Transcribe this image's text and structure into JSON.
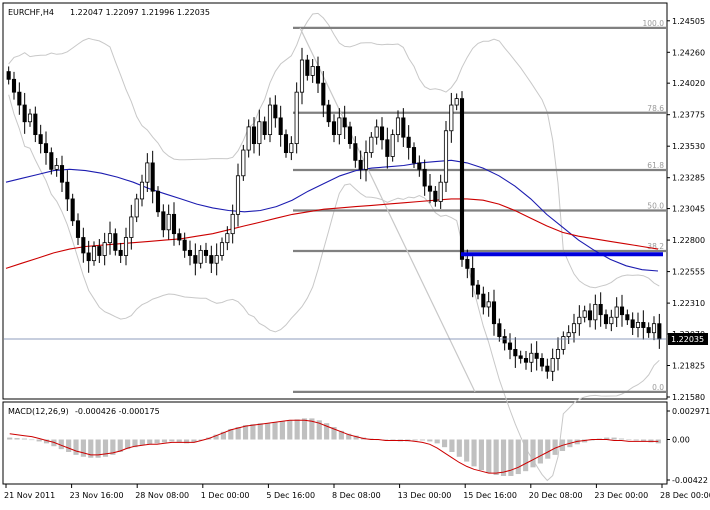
{
  "header": {
    "symbol": "EURCHF,H4",
    "ohlc": "1.22047 1.22097 1.21996 1.22035"
  },
  "macd_header": {
    "label": "MACD(12,26,9)",
    "values": "-0.000426 -0.000175"
  },
  "current_price_label": "1.22035",
  "colors": {
    "candle": "#000000",
    "ma_slow": "#cc0000",
    "ma_fast": "#1c1cb0",
    "bands": "#c8c8c8",
    "fib": "#808080",
    "support_line": "#0000dd",
    "macd_hist": "#c0c0c0",
    "macd_signal": "#cc0000"
  },
  "chart_data": [
    {
      "type": "candlestick",
      "title": "EURCHF,H4 1.22047 1.22097 1.21996 1.22035",
      "ylim": [
        1.2158,
        1.2455
      ],
      "y_ticks": [
        "1.24505",
        "1.24260",
        "1.24020",
        "1.23775",
        "1.23530",
        "1.23285",
        "1.23045",
        "1.22800",
        "1.22555",
        "1.22310",
        "1.22070",
        "1.21825",
        "1.21580"
      ],
      "x_ticks": [
        "21 Nov 2011",
        "23 Nov 16:00",
        "28 Nov 08:00",
        "1 Dec 00:00",
        "5 Dec 16:00",
        "8 Dec 08:00",
        "13 Dec 00:00",
        "15 Dec 16:00",
        "20 Dec 08:00",
        "23 Dec 00:00",
        "28 Dec 00:00"
      ],
      "close": [
        1.2405,
        1.2395,
        1.2385,
        1.2372,
        1.2378,
        1.2362,
        1.2355,
        1.2348,
        1.2335,
        1.2338,
        1.2325,
        1.2312,
        1.2295,
        1.2282,
        1.227,
        1.2264,
        1.2275,
        1.2268,
        1.2278,
        1.2285,
        1.2272,
        1.2268,
        1.2282,
        1.2298,
        1.2312,
        1.2325,
        1.234,
        1.2318,
        1.2302,
        1.2288,
        1.23,
        1.2285,
        1.228,
        1.2272,
        1.2268,
        1.2262,
        1.2272,
        1.2268,
        1.2262,
        1.2268,
        1.2278,
        1.2285,
        1.23,
        1.233,
        1.235,
        1.2368,
        1.2355,
        1.2372,
        1.2362,
        1.2385,
        1.2375,
        1.2362,
        1.2348,
        1.2355,
        1.2395,
        1.242,
        1.2408,
        1.2415,
        1.2402,
        1.2385,
        1.2372,
        1.2362,
        1.2375,
        1.2368,
        1.2355,
        1.2342,
        1.2335,
        1.2348,
        1.236,
        1.2368,
        1.2358,
        1.2345,
        1.2362,
        1.2375,
        1.236,
        1.2352,
        1.234,
        1.2335,
        1.2322,
        1.2318,
        1.231,
        1.2325,
        1.2365,
        1.2385,
        1.239,
        1.2265,
        1.2258,
        1.2245,
        1.2238,
        1.2228,
        1.2232,
        1.2215,
        1.2205,
        1.22,
        1.2195,
        1.219,
        1.2188,
        1.2185,
        1.2192,
        1.2188,
        1.2182,
        1.2178,
        1.2188,
        1.2195,
        1.2205,
        1.2208,
        1.2215,
        1.222,
        1.2225,
        1.2218,
        1.223,
        1.2222,
        1.2215,
        1.222,
        1.2228,
        1.2222,
        1.2218,
        1.2212,
        1.2216,
        1.2212,
        1.2208,
        1.2215,
        1.2203
      ],
      "series": [
        {
          "name": "MA (fast)",
          "color": "#1c1cb0",
          "values": [
            1.2325,
            1.2328,
            1.2331,
            1.2334,
            1.2335,
            1.2334,
            1.2332,
            1.2329,
            1.2325,
            1.232,
            1.2316,
            1.2312,
            1.2308,
            1.2305,
            1.2303,
            1.2302,
            1.2303,
            1.2306,
            1.2311,
            1.2318,
            1.2324,
            1.233,
            1.2334,
            1.2336,
            1.2337,
            1.2338,
            1.234,
            1.2341,
            1.2342,
            1.234,
            1.2336,
            1.233,
            1.2322,
            1.2312,
            1.23,
            1.229,
            1.228,
            1.2272,
            1.2265,
            1.226,
            1.2257,
            1.2256
          ]
        },
        {
          "name": "MA (slow)",
          "color": "#cc0000",
          "values": [
            1.2258,
            1.2262,
            1.2266,
            1.227,
            1.2273,
            1.2275,
            1.2276,
            1.2277,
            1.2278,
            1.2279,
            1.228,
            1.2281,
            1.2283,
            1.2285,
            1.2288,
            1.2291,
            1.2294,
            1.2297,
            1.23,
            1.2302,
            1.2304,
            1.2305,
            1.2306,
            1.2307,
            1.2308,
            1.2309,
            1.231,
            1.2311,
            1.2312,
            1.2312,
            1.2311,
            1.2308,
            1.2303,
            1.2297,
            1.2291,
            1.2286,
            1.2283,
            1.2281,
            1.2279,
            1.2277,
            1.2275,
            1.2273
          ]
        }
      ],
      "fibonacci": [
        {
          "label": "100.0",
          "value": 1.2445
        },
        {
          "label": "78.6",
          "value": 1.2379
        },
        {
          "label": "61.8",
          "value": 1.23345
        },
        {
          "label": "50.0",
          "value": 1.2303
        },
        {
          "label": "38.2",
          "value": 1.22715
        },
        {
          "label": "0.0",
          "value": 1.2162
        }
      ],
      "support_line": {
        "value": 1.2269
      }
    },
    {
      "type": "bar",
      "title": "MACD(12,26,9) -0.000426 -0.000175",
      "ylim": [
        -0.00422,
        0.002971
      ],
      "y_ticks": [
        "0.002971",
        "0.00",
        "-0.00422"
      ],
      "histogram": [
        0.0002,
        0.00015,
        0.0001,
        0.0,
        -0.0002,
        -0.0004,
        -0.0007,
        -0.001,
        -0.0013,
        -0.0016,
        -0.0018,
        -0.0019,
        -0.0019,
        -0.0018,
        -0.0016,
        -0.0013,
        -0.001,
        -0.0008,
        -0.0006,
        -0.0005,
        -0.0004,
        -0.0003,
        -0.0002,
        -0.0003,
        -0.0004,
        -0.0003,
        -0.0001,
        0.0002,
        0.0005,
        0.0008,
        0.0011,
        0.0013,
        0.0015,
        0.0016,
        0.0017,
        0.0017,
        0.0018,
        0.0019,
        0.002,
        0.0021,
        0.0022,
        0.0022,
        0.002,
        0.0017,
        0.0013,
        0.0009,
        0.0006,
        0.0004,
        0.0002,
        0.0001,
        0.0,
        -0.0001,
        -0.0001,
        -0.0002,
        -0.0002,
        -0.0001,
        -0.0001,
        -0.0002,
        -0.0004,
        -0.0008,
        -0.0013,
        -0.0018,
        -0.0023,
        -0.0028,
        -0.0032,
        -0.0035,
        -0.0037,
        -0.0038,
        -0.0038,
        -0.0036,
        -0.0033,
        -0.0029,
        -0.0025,
        -0.002,
        -0.0016,
        -0.0012,
        -0.0008,
        -0.0005,
        -0.0003,
        -0.0001,
        0.0001,
        0.0002,
        0.0002,
        0.0001,
        0.0,
        -0.0001,
        -0.0002,
        -0.0003,
        -0.0004
      ],
      "signal": [
        0.0006,
        0.0005,
        0.0004,
        0.0003,
        0.0001,
        -0.0001,
        -0.0003,
        -0.0006,
        -0.0009,
        -0.0012,
        -0.0014,
        -0.0016,
        -0.0016,
        -0.0015,
        -0.0014,
        -0.0012,
        -0.0009,
        -0.0007,
        -0.0006,
        -0.0005,
        -0.0005,
        -0.0004,
        -0.0003,
        -0.0003,
        -0.0003,
        -0.0003,
        -0.0001,
        0.0001,
        0.0004,
        0.0007,
        0.001,
        0.0012,
        0.0014,
        0.0015,
        0.0016,
        0.0017,
        0.0018,
        0.0019,
        0.002,
        0.002,
        0.002,
        0.0019,
        0.0017,
        0.0014,
        0.0011,
        0.0008,
        0.0005,
        0.0003,
        0.0001,
        0.0,
        0.0,
        -0.0001,
        -0.0001,
        -0.0001,
        -0.0001,
        -0.0002,
        -0.0003,
        -0.0005,
        -0.0009,
        -0.0014,
        -0.0019,
        -0.0024,
        -0.0028,
        -0.0031,
        -0.0033,
        -0.0035,
        -0.0035,
        -0.0034,
        -0.0032,
        -0.0029,
        -0.0025,
        -0.0021,
        -0.0017,
        -0.0013,
        -0.0009,
        -0.0006,
        -0.0004,
        -0.0002,
        -0.0001,
        0.0,
        0.0,
        0.0,
        -0.0001,
        -0.0001,
        -0.0002,
        -0.0002,
        -0.0002,
        -0.0002,
        -0.0002
      ]
    }
  ]
}
